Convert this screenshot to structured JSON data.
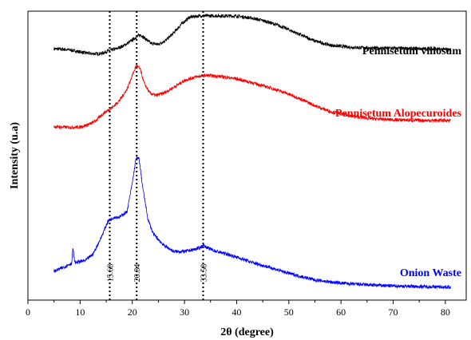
{
  "chart_data": {
    "type": "line",
    "xlabel": "2θ (degree)",
    "ylabel": "Intensity (u.a)",
    "xlim": [
      0,
      84
    ],
    "x_ticks": [
      0,
      10,
      20,
      30,
      40,
      50,
      60,
      70,
      80
    ],
    "ylim": [
      0,
      1
    ],
    "y_ticks_shown": false,
    "grid": false,
    "legend": "none (series labelled directly above each curve)",
    "peak_markers": [
      {
        "x": 15.68,
        "label": "15.68"
      },
      {
        "x": 20.84,
        "label": "20.84"
      },
      {
        "x": 33.58,
        "label": "33.58"
      }
    ],
    "series": [
      {
        "name": "Pennisetum villosum",
        "color": "#000000",
        "x": [
          5,
          8,
          10,
          12,
          14,
          15.5,
          17,
          18.5,
          20,
          21,
          21.6,
          22.5,
          23.5,
          25,
          26.5,
          28,
          29.5,
          31,
          33,
          35,
          37,
          40,
          43,
          46,
          49,
          52,
          55,
          58,
          62,
          66,
          70,
          75,
          81
        ],
        "values": [
          0.87,
          0.866,
          0.859,
          0.853,
          0.853,
          0.863,
          0.87,
          0.882,
          0.9,
          0.913,
          0.918,
          0.905,
          0.889,
          0.885,
          0.9,
          0.926,
          0.957,
          0.979,
          0.984,
          0.984,
          0.984,
          0.983,
          0.976,
          0.963,
          0.944,
          0.92,
          0.897,
          0.882,
          0.875,
          0.872,
          0.872,
          0.87,
          0.867
        ]
      },
      {
        "name": "Pennisetum Alopecuroides",
        "color": "#ff0000",
        "x": [
          5,
          8,
          10,
          12,
          13,
          14.5,
          16,
          17.5,
          19,
          20,
          20.8,
          21.5,
          22.3,
          23.3,
          24.5,
          26,
          28,
          30,
          32,
          34,
          37,
          40,
          43,
          46,
          49,
          52,
          55,
          58,
          62,
          66,
          70,
          75,
          81
        ],
        "values": [
          0.6,
          0.598,
          0.599,
          0.61,
          0.621,
          0.647,
          0.664,
          0.69,
          0.73,
          0.778,
          0.812,
          0.8,
          0.75,
          0.718,
          0.708,
          0.716,
          0.737,
          0.76,
          0.772,
          0.778,
          0.774,
          0.766,
          0.752,
          0.737,
          0.72,
          0.698,
          0.673,
          0.652,
          0.637,
          0.628,
          0.624,
          0.622,
          0.622
        ]
      },
      {
        "name": "Onion Waste",
        "color": "#0000ff",
        "x": [
          5,
          7,
          8.4,
          8.6,
          9,
          11,
          12.5,
          14,
          15.3,
          16.5,
          17.5,
          19,
          20,
          20.7,
          21.3,
          22,
          23,
          24,
          26,
          28,
          30,
          31.5,
          32.8,
          33.6,
          34.5,
          36,
          38,
          40,
          43,
          46,
          49,
          52,
          55,
          58,
          62,
          66,
          70,
          75,
          81
        ],
        "values": [
          0.1,
          0.115,
          0.128,
          0.18,
          0.13,
          0.137,
          0.16,
          0.215,
          0.272,
          0.287,
          0.287,
          0.306,
          0.405,
          0.49,
          0.49,
          0.39,
          0.28,
          0.23,
          0.19,
          0.168,
          0.168,
          0.174,
          0.18,
          0.19,
          0.18,
          0.169,
          0.16,
          0.149,
          0.13,
          0.115,
          0.098,
          0.083,
          0.07,
          0.062,
          0.056,
          0.052,
          0.049,
          0.047,
          0.045
        ]
      }
    ]
  }
}
